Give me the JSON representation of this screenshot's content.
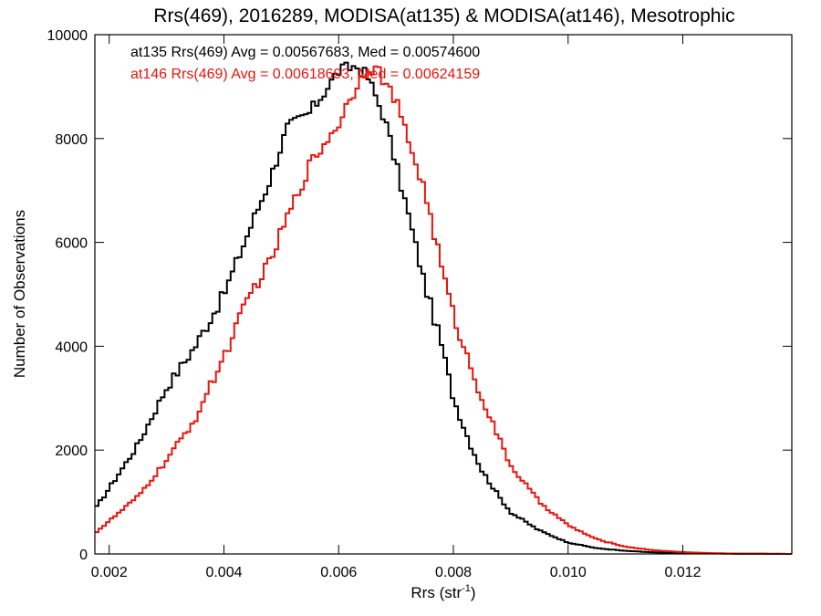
{
  "chart_data": {
    "type": "line",
    "title": "Rrs(469), 2016289, MODISA(at135) & MODISA(at146), Mesotrophic",
    "xlabel_main": "Rrs (str",
    "xlabel_sup": "-1",
    "xlabel_close": ")",
    "ylabel": "Number of Observations",
    "xlim": [
      0.00175,
      0.0139
    ],
    "ylim": [
      0,
      10000
    ],
    "x_ticks": [
      "0.002",
      "0.004",
      "0.006",
      "0.008",
      "0.010",
      "0.012"
    ],
    "y_ticks": [
      "0",
      "2000",
      "4000",
      "6000",
      "8000",
      "10000"
    ],
    "grid": false,
    "legend_position": "top-left",
    "series": [
      {
        "name": "at135",
        "label": "at135 Rrs(469) Avg = 0.00567683, Med = 0.00574600",
        "color": "#000000",
        "x": [
          0.00175,
          0.0025,
          0.003,
          0.0035,
          0.004,
          0.0045,
          0.0048,
          0.0051,
          0.0055,
          0.006,
          0.0063,
          0.0065,
          0.0068,
          0.007,
          0.0072,
          0.0075,
          0.0078,
          0.008,
          0.0083,
          0.0085,
          0.0088,
          0.009,
          0.0095,
          0.01,
          0.0105,
          0.011,
          0.0115,
          0.012,
          0.013,
          0.0139
        ],
        "values": [
          850,
          2100,
          3200,
          4000,
          5000,
          6400,
          7200,
          8200,
          8500,
          9300,
          9400,
          9200,
          8400,
          7500,
          6600,
          5200,
          4000,
          3000,
          2100,
          1600,
          1100,
          800,
          450,
          220,
          110,
          60,
          30,
          15,
          5,
          0
        ]
      },
      {
        "name": "at146",
        "label": "at146 Rrs(469) Avg = 0.00618693, Med = 0.00624159",
        "color": "#e8140c",
        "x": [
          0.00175,
          0.0025,
          0.003,
          0.0035,
          0.004,
          0.0045,
          0.0048,
          0.005,
          0.0055,
          0.006,
          0.0063,
          0.0065,
          0.0067,
          0.007,
          0.0075,
          0.0078,
          0.008,
          0.0083,
          0.0085,
          0.0088,
          0.009,
          0.0095,
          0.01,
          0.0105,
          0.011,
          0.0115,
          0.012,
          0.0125,
          0.013,
          0.0139
        ],
        "values": [
          400,
          1100,
          1800,
          2600,
          3800,
          5100,
          5600,
          6200,
          7500,
          8300,
          9000,
          9400,
          9300,
          8700,
          7000,
          5500,
          4600,
          3600,
          3000,
          2200,
          1700,
          1000,
          550,
          280,
          140,
          70,
          35,
          15,
          5,
          0
        ]
      }
    ]
  }
}
